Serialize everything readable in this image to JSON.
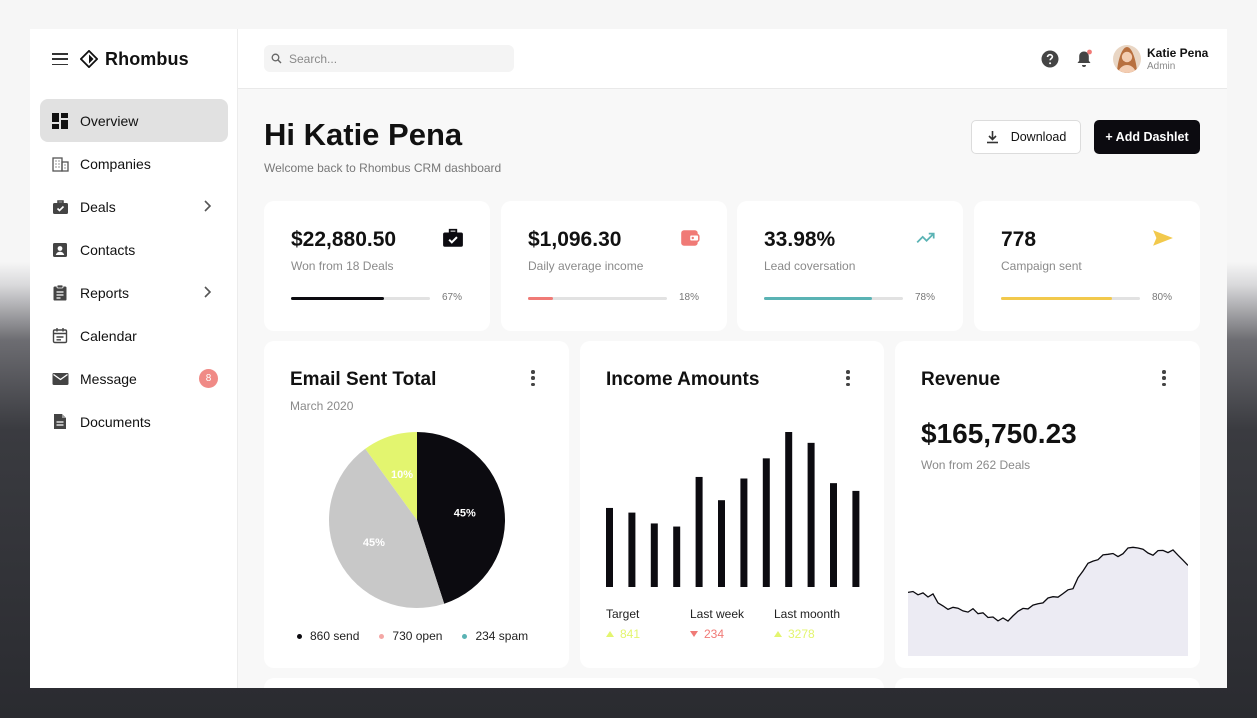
{
  "brand": {
    "name": "Rhombus"
  },
  "nav": [
    {
      "label": "Overview",
      "icon": "dashboard-icon",
      "active": true
    },
    {
      "label": "Companies",
      "icon": "building-icon"
    },
    {
      "label": "Deals",
      "icon": "briefcase-check-icon",
      "has_submenu": true
    },
    {
      "label": "Contacts",
      "icon": "contact-card-icon"
    },
    {
      "label": "Reports",
      "icon": "clipboard-icon",
      "has_submenu": true
    },
    {
      "label": "Calendar",
      "icon": "calendar-icon"
    },
    {
      "label": "Message",
      "icon": "mail-icon",
      "badge": "8"
    },
    {
      "label": "Documents",
      "icon": "document-icon"
    }
  ],
  "topbar": {
    "search_placeholder": "Search...",
    "user": {
      "name": "Katie Pena",
      "role": "Admin"
    }
  },
  "header": {
    "greeting": "Hi Katie Pena",
    "welcome": "Welcome back to Rhombus CRM dashboard",
    "download_label": "Download",
    "add_label": "+ Add Dashlet"
  },
  "stats": [
    {
      "value": "$22,880.50",
      "label": "Won from 18 Deals",
      "percent": "67%",
      "progress": 0.67,
      "color": "#0c0b10",
      "icon": "briefcase-check-icon"
    },
    {
      "value": "$1,096.30",
      "label": "Daily average income",
      "percent": "18%",
      "progress": 0.18,
      "color": "#f07a76",
      "icon": "wallet-icon"
    },
    {
      "value": "33.98%",
      "label": "Lead coversation",
      "percent": "78%",
      "progress": 0.78,
      "color": "#5ab3b4",
      "icon": "trending-up-icon"
    },
    {
      "value": "778",
      "label": "Campaign sent",
      "percent": "80%",
      "progress": 0.8,
      "color": "#f2c94c",
      "icon": "send-icon"
    }
  ],
  "email_card": {
    "title": "Email Sent Total",
    "subtitle": "March 2020",
    "legend": [
      {
        "label": "860 send",
        "color": "#0c0b10"
      },
      {
        "label": "730 open",
        "color": "#f4a7a5"
      },
      {
        "label": "234 spam",
        "color": "#5ab3b4"
      }
    ]
  },
  "income_card": {
    "title": "Income Amounts",
    "stats": [
      {
        "label": "Target",
        "value": "841",
        "direction": "up",
        "color": "#e3f56f"
      },
      {
        "label": "Last week",
        "value": "234",
        "direction": "down",
        "color": "#f07a76"
      },
      {
        "label": "Last moonth",
        "value": "3278",
        "direction": "up",
        "color": "#e3f56f"
      }
    ]
  },
  "revenue_card": {
    "title": "Revenue",
    "value": "$165,750.23",
    "subtitle": "Won from 262 Deals"
  },
  "chart_data": [
    {
      "type": "pie",
      "title": "Email Sent Total",
      "slices": [
        {
          "label": "45%",
          "value": 45,
          "color": "#0c0b10"
        },
        {
          "label": "45%",
          "value": 45,
          "color": "#c8c8c8"
        },
        {
          "label": "10%",
          "value": 10,
          "color": "#e3f56f"
        }
      ]
    },
    {
      "type": "bar",
      "title": "Income Amounts",
      "values": [
        51,
        48,
        41,
        39,
        71,
        56,
        70,
        83,
        100,
        93,
        67,
        62
      ],
      "ylim": [
        0,
        100
      ],
      "color": "#0c0b10"
    },
    {
      "type": "area",
      "title": "Revenue",
      "values": [
        37,
        37.5,
        35.6,
        36.7,
        34.3,
        36.1,
        30.9,
        29.1,
        27.1,
        28.3,
        27.8,
        26.2,
        25.5,
        27.5,
        24.6,
        25.1,
        22.4,
        22.7,
        20.4,
        22.1,
        20.3,
        23.3,
        26,
        27.7,
        27.4,
        29.6,
        30.4,
        30.9,
        33.7,
        34.5,
        34.2,
        36.3,
        38.5,
        39.1,
        45.5,
        49.4,
        53.9,
        55.2,
        56,
        58.8,
        59.1,
        59.6,
        57.8,
        59.5,
        62.8,
        63.2,
        62.8,
        62.1,
        59.9,
        58.6,
        61.3,
        61.4,
        60.1,
        61.7,
        58.6,
        55.7,
        52.7
      ],
      "ylim": [
        0,
        100
      ],
      "line_color": "#0c0b10",
      "fill_color": "#ecebf3"
    }
  ]
}
